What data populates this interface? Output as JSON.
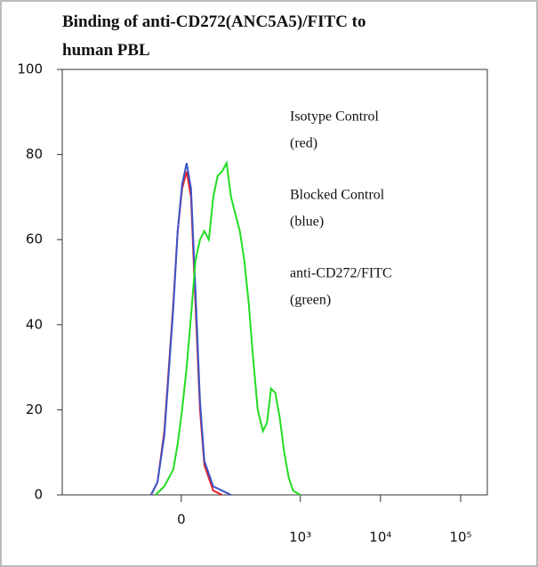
{
  "chart_data": {
    "type": "line",
    "title": [
      "Binding of anti-CD272(ANC5A5)/FITC to",
      "human PBL"
    ],
    "xscale": "biexponential",
    "xlim": [
      -1000,
      215000
    ],
    "xticks": [
      {
        "value": 0,
        "label": "0"
      },
      {
        "value": 1000,
        "label": "10³"
      },
      {
        "value": 10000,
        "label": "10⁴"
      },
      {
        "value": 100000,
        "label": "10⁵"
      }
    ],
    "ylim": [
      0,
      100
    ],
    "yticks": [
      0,
      20,
      40,
      60,
      80,
      100
    ],
    "annotations": [
      "Isotype Control",
      "(red)",
      "Blocked Control",
      "(blue)",
      "anti-CD272/FITC",
      "(green)"
    ],
    "series": [
      {
        "color": "#e8212a",
        "x": [
          -254,
          -200,
          -142,
          -67,
          -30,
          7,
          45,
          82,
          119,
          157,
          194,
          269,
          343
        ],
        "values": [
          0,
          3,
          15,
          45,
          62,
          72,
          76,
          70,
          45,
          20,
          7,
          1,
          0
        ]
      },
      {
        "color": "#3a55c8",
        "x": [
          -254,
          -200,
          -142,
          -67,
          -30,
          7,
          45,
          82,
          119,
          157,
          194,
          269,
          343,
          418
        ],
        "values": [
          0,
          3,
          14,
          44,
          62,
          73,
          78,
          72,
          48,
          22,
          8,
          2,
          1,
          0
        ]
      },
      {
        "color": "#22dd22",
        "x": [
          -216,
          -142,
          -67,
          -30,
          7,
          45,
          82,
          119,
          157,
          194,
          232,
          269,
          306,
          343,
          381,
          418,
          455,
          492,
          530,
          567,
          604,
          642,
          686,
          721,
          754,
          790,
          828,
          865,
          903,
          940,
          1000
        ],
        "values": [
          0,
          2,
          6,
          12,
          20,
          30,
          42,
          55,
          60,
          62,
          60,
          70,
          75,
          76,
          78,
          70,
          66,
          62,
          55,
          45,
          32,
          20,
          15,
          17,
          25,
          24,
          18,
          10,
          4,
          1,
          0
        ]
      }
    ]
  }
}
